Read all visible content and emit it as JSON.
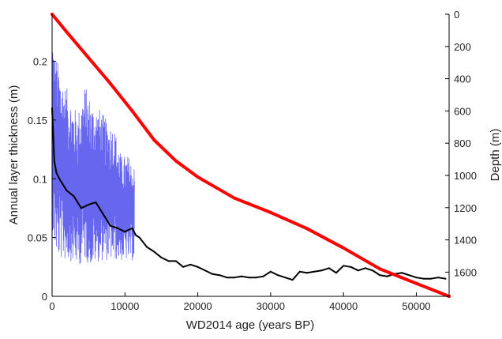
{
  "chart_data": {
    "type": "line",
    "xlabel": "WD2014 age (years BP)",
    "ylabel_left": "Annual layer thickness (m)",
    "ylabel_right": "Depth (m)",
    "xlim": [
      0,
      54500
    ],
    "ylim_left": [
      0,
      0.24
    ],
    "ylim_right": [
      0,
      1750
    ],
    "right_axis_inverted": true,
    "grid": false,
    "x_ticks": [
      {
        "value": 0,
        "label": "0"
      },
      {
        "value": 10000,
        "label": "10000"
      },
      {
        "value": 20000,
        "label": "20000"
      },
      {
        "value": 30000,
        "label": "30000"
      },
      {
        "value": 40000,
        "label": "40000"
      },
      {
        "value": 50000,
        "label": "50000"
      }
    ],
    "y_ticks_left": [
      {
        "value": 0,
        "label": "0"
      },
      {
        "value": 0.05,
        "label": "0.05"
      },
      {
        "value": 0.1,
        "label": "0.1"
      },
      {
        "value": 0.15,
        "label": "0.15"
      },
      {
        "value": 0.2,
        "label": "0.2"
      }
    ],
    "y_ticks_right": [
      {
        "value": 0,
        "label": "0"
      },
      {
        "value": 200,
        "label": "200"
      },
      {
        "value": 400,
        "label": "400"
      },
      {
        "value": 600,
        "label": "600"
      },
      {
        "value": 800,
        "label": "800"
      },
      {
        "value": 1000,
        "label": "1000"
      },
      {
        "value": 1200,
        "label": "1200"
      },
      {
        "value": 1400,
        "label": "1400"
      },
      {
        "value": 1600,
        "label": "1600"
      }
    ],
    "series": [
      {
        "color": "#6666ee",
        "axis": "left",
        "style": "noisy-band",
        "x": [
          0,
          300,
          800,
          1500,
          2500,
          3500,
          4500,
          5500,
          6500,
          7500,
          8500,
          9500,
          10500,
          11300
        ],
        "low": [
          0.06,
          0.04,
          0.03,
          0.03,
          0.03,
          0.025,
          0.03,
          0.025,
          0.03,
          0.03,
          0.03,
          0.03,
          0.03,
          0.03
        ],
        "high": [
          0.235,
          0.21,
          0.2,
          0.185,
          0.17,
          0.155,
          0.18,
          0.165,
          0.16,
          0.15,
          0.145,
          0.12,
          0.12,
          0.11
        ]
      },
      {
        "color": "#000000",
        "axis": "left",
        "style": "line",
        "x": [
          0,
          300,
          600,
          1000,
          1500,
          2000,
          3000,
          4000,
          5000,
          6000,
          7000,
          8000,
          9000,
          10000,
          11000,
          11500,
          12000,
          13000,
          14000,
          15000,
          16000,
          17000,
          18000,
          19000,
          20000,
          21000,
          22000,
          23000,
          24000,
          25000,
          26000,
          27000,
          28000,
          29000,
          30000,
          31000,
          32000,
          33000,
          34000,
          35000,
          36000,
          37000,
          38000,
          39000,
          40000,
          41000,
          42000,
          43000,
          44000,
          45000,
          46000,
          47000,
          48000,
          49000,
          50000,
          51000,
          52000,
          53000,
          54000
        ],
        "values": [
          0.16,
          0.115,
          0.105,
          0.1,
          0.095,
          0.09,
          0.085,
          0.075,
          0.078,
          0.08,
          0.07,
          0.06,
          0.058,
          0.055,
          0.058,
          0.052,
          0.05,
          0.042,
          0.038,
          0.033,
          0.03,
          0.03,
          0.025,
          0.027,
          0.025,
          0.022,
          0.019,
          0.018,
          0.016,
          0.016,
          0.017,
          0.016,
          0.016,
          0.017,
          0.021,
          0.018,
          0.016,
          0.014,
          0.021,
          0.02,
          0.021,
          0.022,
          0.024,
          0.02,
          0.026,
          0.025,
          0.022,
          0.024,
          0.022,
          0.018,
          0.017,
          0.019,
          0.02,
          0.018,
          0.016,
          0.015,
          0.015,
          0.016,
          0.015
        ]
      },
      {
        "color": "#ff0000",
        "axis": "right",
        "style": "thick-line",
        "x": [
          0,
          2000,
          5000,
          8000,
          11000,
          14000,
          17000,
          20000,
          25000,
          30000,
          35000,
          40000,
          45000,
          50000,
          54500
        ],
        "values": [
          0,
          110,
          270,
          430,
          600,
          780,
          910,
          1010,
          1140,
          1230,
          1330,
          1450,
          1580,
          1670,
          1750
        ]
      }
    ]
  }
}
